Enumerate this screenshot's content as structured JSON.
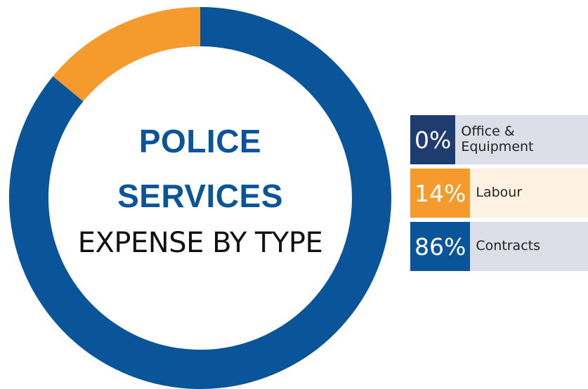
{
  "chart_data": {
    "type": "pie",
    "variant": "donut",
    "title_line1": "POLICE",
    "title_line2": "SERVICES",
    "subtitle": "EXPENSE BY TYPE",
    "slices": [
      {
        "label": "Office & Equipment",
        "value": 0,
        "percent_label": "0%",
        "color": "#1f3c6e",
        "light_color": "#dcdee8"
      },
      {
        "label": "Labour",
        "value": 14,
        "percent_label": "14%",
        "color": "#f59b2e",
        "light_color": "#fdf1e2"
      },
      {
        "label": "Contracts",
        "value": 86,
        "percent_label": "86%",
        "color": "#0a5599",
        "light_color": "#dcdee8"
      }
    ]
  }
}
